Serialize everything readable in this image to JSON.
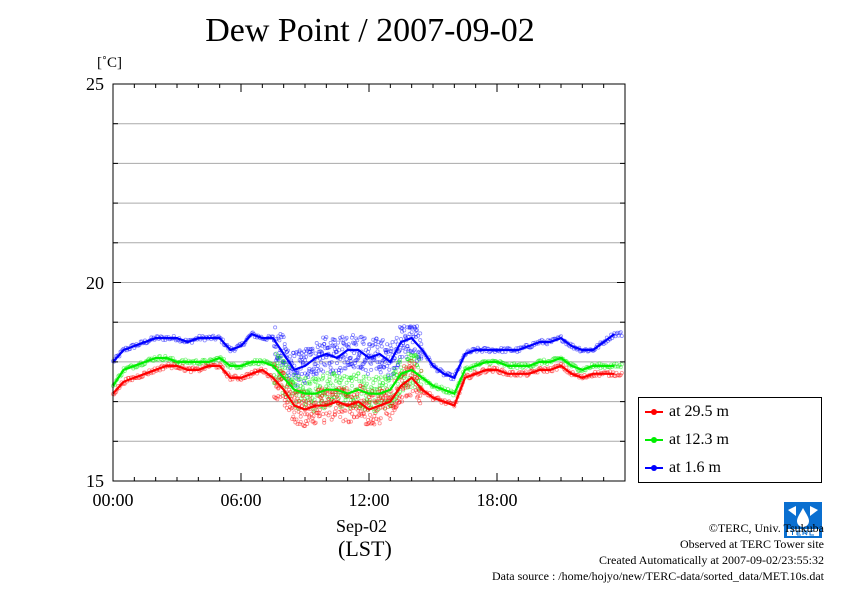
{
  "title": "Dew Point / 2007-09-02",
  "unit": "[˚C]",
  "xaxis": {
    "ticks": [
      "00:00",
      "06:00",
      "12:00",
      "18:00"
    ],
    "date_label": "Sep-02",
    "tz_label": "(LST)"
  },
  "yaxis": {
    "ticks": [
      "25",
      "20",
      "15"
    ]
  },
  "legend": [
    {
      "label": "at 29.5 m",
      "color": "#ff0000"
    },
    {
      "label": "at 12.3 m",
      "color": "#00ee00"
    },
    {
      "label": "at 1.6 m",
      "color": "#0000ff"
    }
  ],
  "credits": {
    "copyright": "©TERC, Univ. Tsukuba",
    "observed": "Observed at TERC Tower site",
    "created": "Created Automatically at 2007-09-02/23:55:32",
    "source": "Data source : /home/hojyo/new/TERC-data/sorted_data/MET.10s.dat"
  },
  "logo_icon": "terc-logo-icon",
  "chart_data": {
    "type": "line",
    "title": "Dew Point / 2007-09-02",
    "xlabel": "Sep-02 (LST)",
    "ylabel": "[˚C]",
    "xlim": [
      0,
      24
    ],
    "ylim": [
      15,
      25
    ],
    "grid": true,
    "legend_position": "bottom-right",
    "x": [
      0,
      0.5,
      1,
      1.5,
      2,
      2.5,
      3,
      3.5,
      4,
      4.5,
      5,
      5.5,
      6,
      6.5,
      7,
      7.5,
      8,
      8.5,
      9,
      9.5,
      10,
      10.5,
      11,
      11.5,
      12,
      12.5,
      13,
      13.5,
      14,
      14.5,
      15,
      15.5,
      16,
      16.5,
      17,
      17.5,
      18,
      18.5,
      19,
      19.5,
      20,
      20.5,
      21,
      21.5,
      22,
      22.5,
      23,
      23.5
    ],
    "series": [
      {
        "name": "at 29.5 m",
        "color": "#ff0000",
        "values": [
          17.2,
          17.5,
          17.6,
          17.7,
          17.8,
          17.9,
          17.9,
          17.8,
          17.8,
          17.9,
          17.9,
          17.6,
          17.6,
          17.7,
          17.8,
          17.6,
          17.3,
          16.9,
          16.8,
          16.9,
          16.9,
          17.0,
          16.9,
          17.0,
          16.8,
          16.9,
          17.0,
          17.4,
          17.6,
          17.3,
          17.1,
          17.0,
          16.9,
          17.6,
          17.7,
          17.8,
          17.8,
          17.7,
          17.7,
          17.7,
          17.8,
          17.8,
          17.9,
          17.7,
          17.6,
          17.7,
          17.7,
          17.7
        ]
      },
      {
        "name": "at 12.3 m",
        "color": "#00ee00",
        "values": [
          17.4,
          17.8,
          17.9,
          18.0,
          18.1,
          18.1,
          18.0,
          18.0,
          18.0,
          18.0,
          18.1,
          17.9,
          17.9,
          18.0,
          18.0,
          17.9,
          17.6,
          17.3,
          17.2,
          17.2,
          17.3,
          17.3,
          17.2,
          17.3,
          17.2,
          17.2,
          17.3,
          17.7,
          17.8,
          17.6,
          17.4,
          17.3,
          17.2,
          17.8,
          17.9,
          18.0,
          18.0,
          17.9,
          17.9,
          17.9,
          18.0,
          18.0,
          18.1,
          17.9,
          17.8,
          17.9,
          17.9,
          17.9
        ]
      },
      {
        "name": "at 1.6 m",
        "color": "#0000ff",
        "values": [
          18.0,
          18.3,
          18.4,
          18.5,
          18.6,
          18.6,
          18.6,
          18.5,
          18.6,
          18.6,
          18.6,
          18.3,
          18.4,
          18.7,
          18.6,
          18.6,
          18.2,
          17.8,
          17.9,
          18.1,
          18.2,
          18.1,
          18.3,
          18.3,
          18.1,
          18.2,
          18.0,
          18.5,
          18.6,
          18.3,
          17.9,
          17.7,
          17.6,
          18.2,
          18.3,
          18.3,
          18.3,
          18.3,
          18.3,
          18.4,
          18.5,
          18.5,
          18.6,
          18.4,
          18.3,
          18.3,
          18.5,
          18.7
        ]
      }
    ]
  }
}
